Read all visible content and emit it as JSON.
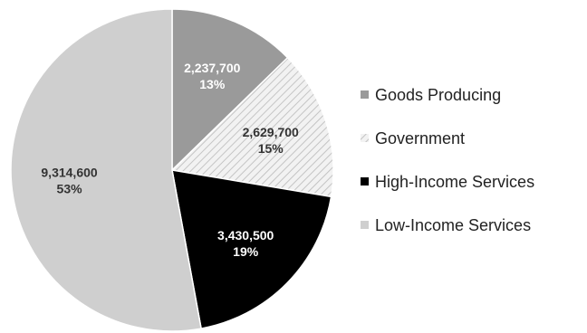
{
  "chart_data": {
    "type": "pie",
    "slices": [
      {
        "name": "Goods Producing",
        "value": 2237700,
        "value_label": "2,237,700",
        "percent_label": "13%",
        "color": "#9a9a9a",
        "pattern": "solid",
        "label_color": "#ffffff"
      },
      {
        "name": "Government",
        "value": 2629700,
        "value_label": "2,629,700",
        "percent_label": "15%",
        "color": "#e6e6e6",
        "pattern": "diagonal-hatch",
        "label_color": "#333333"
      },
      {
        "name": "High-Income Services",
        "value": 3430500,
        "value_label": "3,430,500",
        "percent_label": "19%",
        "color": "#000000",
        "pattern": "solid",
        "label_color": "#ffffff"
      },
      {
        "name": "Low-Income Services",
        "value": 9314600,
        "value_label": "9,314,600",
        "percent_label": "53%",
        "color": "#cfcfcf",
        "pattern": "solid",
        "label_color": "#333333"
      }
    ],
    "start": "12 o'clock",
    "direction": "clockwise",
    "legend_position": "right"
  }
}
